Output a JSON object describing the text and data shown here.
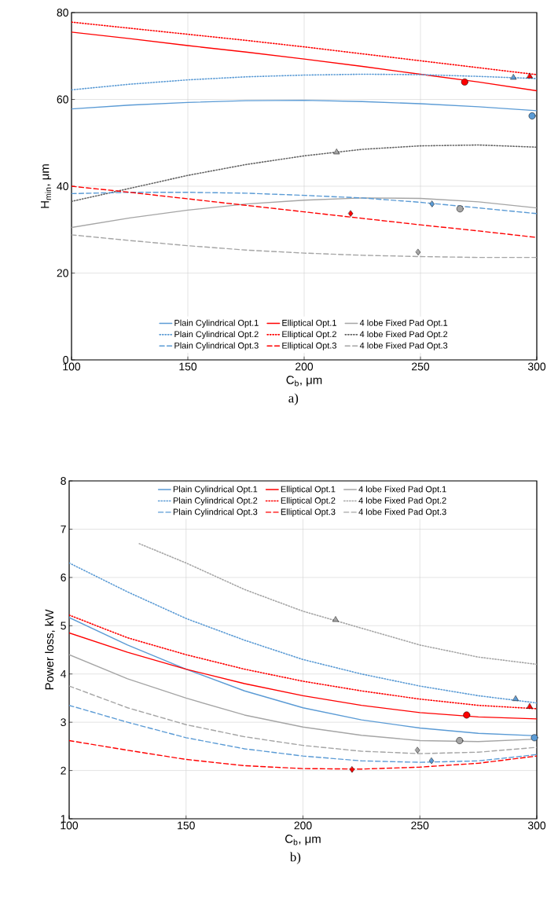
{
  "chart_data": [
    {
      "type": "line",
      "xlabel": "C$_{b}$, μm",
      "ylabel": "H$_{min}$, μm",
      "x": [
        100,
        125,
        150,
        175,
        200,
        225,
        250,
        275,
        300
      ],
      "xlim": [
        100,
        300
      ],
      "ylim": [
        0,
        80
      ],
      "xticks": [
        100,
        150,
        200,
        250,
        300
      ],
      "yticks": [
        0,
        20,
        40,
        60,
        80
      ],
      "grid": true,
      "legend": "bottom",
      "annotations": [
        "a)"
      ],
      "series": [
        {
          "name": "Plain Cylindrical Opt.1",
          "color": "#5b9bd5",
          "line_style": "solid",
          "values": [
            57.8,
            58.7,
            59.3,
            59.7,
            59.8,
            59.5,
            59.0,
            58.3,
            57.4
          ]
        },
        {
          "name": "Elliptical Opt.1",
          "color": "#ff0000",
          "line_style": "solid",
          "values": [
            75.5,
            74.0,
            72.4,
            70.9,
            69.3,
            67.6,
            65.8,
            64.0,
            62.0
          ]
        },
        {
          "name": "4 lobe Fixed Pad Opt.1",
          "color": "#a5a5a5",
          "line_style": "solid",
          "values": [
            30.5,
            32.7,
            34.5,
            35.9,
            36.8,
            37.3,
            37.2,
            36.4,
            35.0
          ]
        },
        {
          "name": "Plain Cylindrical Opt.2",
          "color": "#5b9bd5",
          "line_style": "dotted",
          "values": [
            62.2,
            63.5,
            64.5,
            65.2,
            65.6,
            65.8,
            65.7,
            65.3,
            64.8
          ]
        },
        {
          "name": "Elliptical Opt.2",
          "color": "#ff0000",
          "line_style": "dotted",
          "values": [
            77.8,
            76.4,
            75.0,
            73.6,
            72.1,
            70.5,
            68.9,
            67.3,
            65.7
          ]
        },
        {
          "name": "4 lobe Fixed Pad Opt.2",
          "color": "#636363",
          "line_style": "dotted",
          "values": [
            36.5,
            39.5,
            42.5,
            45.0,
            47.0,
            48.5,
            49.3,
            49.5,
            49.0
          ]
        },
        {
          "name": "Plain Cylindrical Opt.3",
          "color": "#5b9bd5",
          "line_style": "dashed",
          "values": [
            38.3,
            38.6,
            38.6,
            38.4,
            37.9,
            37.3,
            36.3,
            35.0,
            33.7
          ]
        },
        {
          "name": "Elliptical Opt.3",
          "color": "#ff0000",
          "line_style": "dashed",
          "values": [
            40.0,
            38.6,
            37.1,
            35.6,
            34.1,
            32.6,
            31.1,
            29.7,
            28.2
          ]
        },
        {
          "name": "4 lobe Fixed Pad Opt.3",
          "color": "#a5a5a5",
          "line_style": "dashed",
          "values": [
            28.8,
            27.5,
            26.3,
            25.3,
            24.6,
            24.1,
            23.8,
            23.6,
            23.6
          ]
        },
        {
          "type": "scatter",
          "marker": "triangle",
          "x": [
            290,
            297,
            214
          ],
          "values": [
            65.0,
            65.3,
            47.8
          ],
          "colors": [
            "#5b9bd5",
            "#ff0000",
            "#a5a5a5"
          ]
        },
        {
          "type": "scatter",
          "marker": "circle",
          "x": [
            298,
            269,
            267
          ],
          "values": [
            56.2,
            64.0,
            34.8
          ],
          "colors": [
            "#5b9bd5",
            "#ff0000",
            "#a5a5a5"
          ]
        },
        {
          "type": "scatter",
          "marker": "diamond",
          "x": [
            255,
            220,
            249
          ],
          "values": [
            35.9,
            33.7,
            24.8
          ],
          "colors": [
            "#5b9bd5",
            "#ff0000",
            "#a5a5a5"
          ]
        }
      ]
    },
    {
      "type": "line",
      "xlabel": "C$_{b}$, μm",
      "ylabel": "Power loss, kW",
      "x": [
        100,
        125,
        150,
        175,
        200,
        225,
        250,
        275,
        300
      ],
      "xlim": [
        100,
        300
      ],
      "ylim": [
        1,
        8
      ],
      "xticks": [
        100,
        150,
        200,
        250,
        300
      ],
      "yticks": [
        1,
        2,
        3,
        4,
        5,
        6,
        7,
        8
      ],
      "grid": true,
      "legend": "top",
      "annotations": [
        "b)"
      ],
      "series": [
        {
          "name": "Plain Cylindrical Opt.1",
          "color": "#5b9bd5",
          "line_style": "solid",
          "values": [
            5.17,
            4.6,
            4.1,
            3.65,
            3.3,
            3.05,
            2.88,
            2.77,
            2.72
          ]
        },
        {
          "name": "Elliptical Opt.1",
          "color": "#ff0000",
          "line_style": "solid",
          "values": [
            4.85,
            4.45,
            4.1,
            3.8,
            3.55,
            3.35,
            3.2,
            3.11,
            3.07
          ]
        },
        {
          "name": "4 lobe Fixed Pad Opt.1",
          "color": "#a5a5a5",
          "line_style": "solid",
          "values": [
            4.4,
            3.9,
            3.5,
            3.15,
            2.9,
            2.73,
            2.62,
            2.6,
            2.65
          ]
        },
        {
          "name": "Plain Cylindrical Opt.2",
          "color": "#5b9bd5",
          "line_style": "dotted",
          "values": [
            6.3,
            5.7,
            5.15,
            4.7,
            4.3,
            4.0,
            3.75,
            3.55,
            3.4
          ]
        },
        {
          "name": "Elliptical Opt.2",
          "color": "#ff0000",
          "line_style": "dotted",
          "values": [
            5.22,
            4.75,
            4.4,
            4.1,
            3.85,
            3.65,
            3.48,
            3.35,
            3.28
          ]
        },
        {
          "name": "4 lobe Fixed Pad Opt.2",
          "color": "#a5a5a5",
          "line_style": "dotted",
          "x": [
            130,
            150,
            175,
            200,
            225,
            250,
            275,
            300
          ],
          "values": [
            6.7,
            6.3,
            5.75,
            5.3,
            4.95,
            4.6,
            4.35,
            4.2
          ]
        },
        {
          "name": "Plain Cylindrical Opt.3",
          "color": "#5b9bd5",
          "line_style": "dashed",
          "values": [
            3.35,
            3.0,
            2.68,
            2.45,
            2.3,
            2.2,
            2.17,
            2.2,
            2.33
          ]
        },
        {
          "name": "Elliptical Opt.3",
          "color": "#ff0000",
          "line_style": "dashed",
          "values": [
            2.62,
            2.42,
            2.23,
            2.1,
            2.04,
            2.03,
            2.07,
            2.15,
            2.3
          ]
        },
        {
          "name": "4 lobe Fixed Pad Opt.3",
          "color": "#a5a5a5",
          "line_style": "dashed",
          "values": [
            3.75,
            3.3,
            2.95,
            2.7,
            2.52,
            2.4,
            2.35,
            2.38,
            2.48
          ]
        },
        {
          "type": "scatter",
          "marker": "triangle",
          "x": [
            291,
            297,
            214
          ],
          "values": [
            3.48,
            3.32,
            5.12
          ],
          "colors": [
            "#5b9bd5",
            "#ff0000",
            "#a5a5a5"
          ]
        },
        {
          "type": "scatter",
          "marker": "circle",
          "x": [
            299,
            270,
            267
          ],
          "values": [
            2.68,
            3.15,
            2.62
          ],
          "colors": [
            "#5b9bd5",
            "#ff0000",
            "#a5a5a5"
          ]
        },
        {
          "type": "scatter",
          "marker": "diamond",
          "x": [
            255,
            221,
            249
          ],
          "values": [
            2.2,
            2.02,
            2.42
          ],
          "colors": [
            "#5b9bd5",
            "#ff0000",
            "#a5a5a5"
          ]
        }
      ]
    }
  ]
}
